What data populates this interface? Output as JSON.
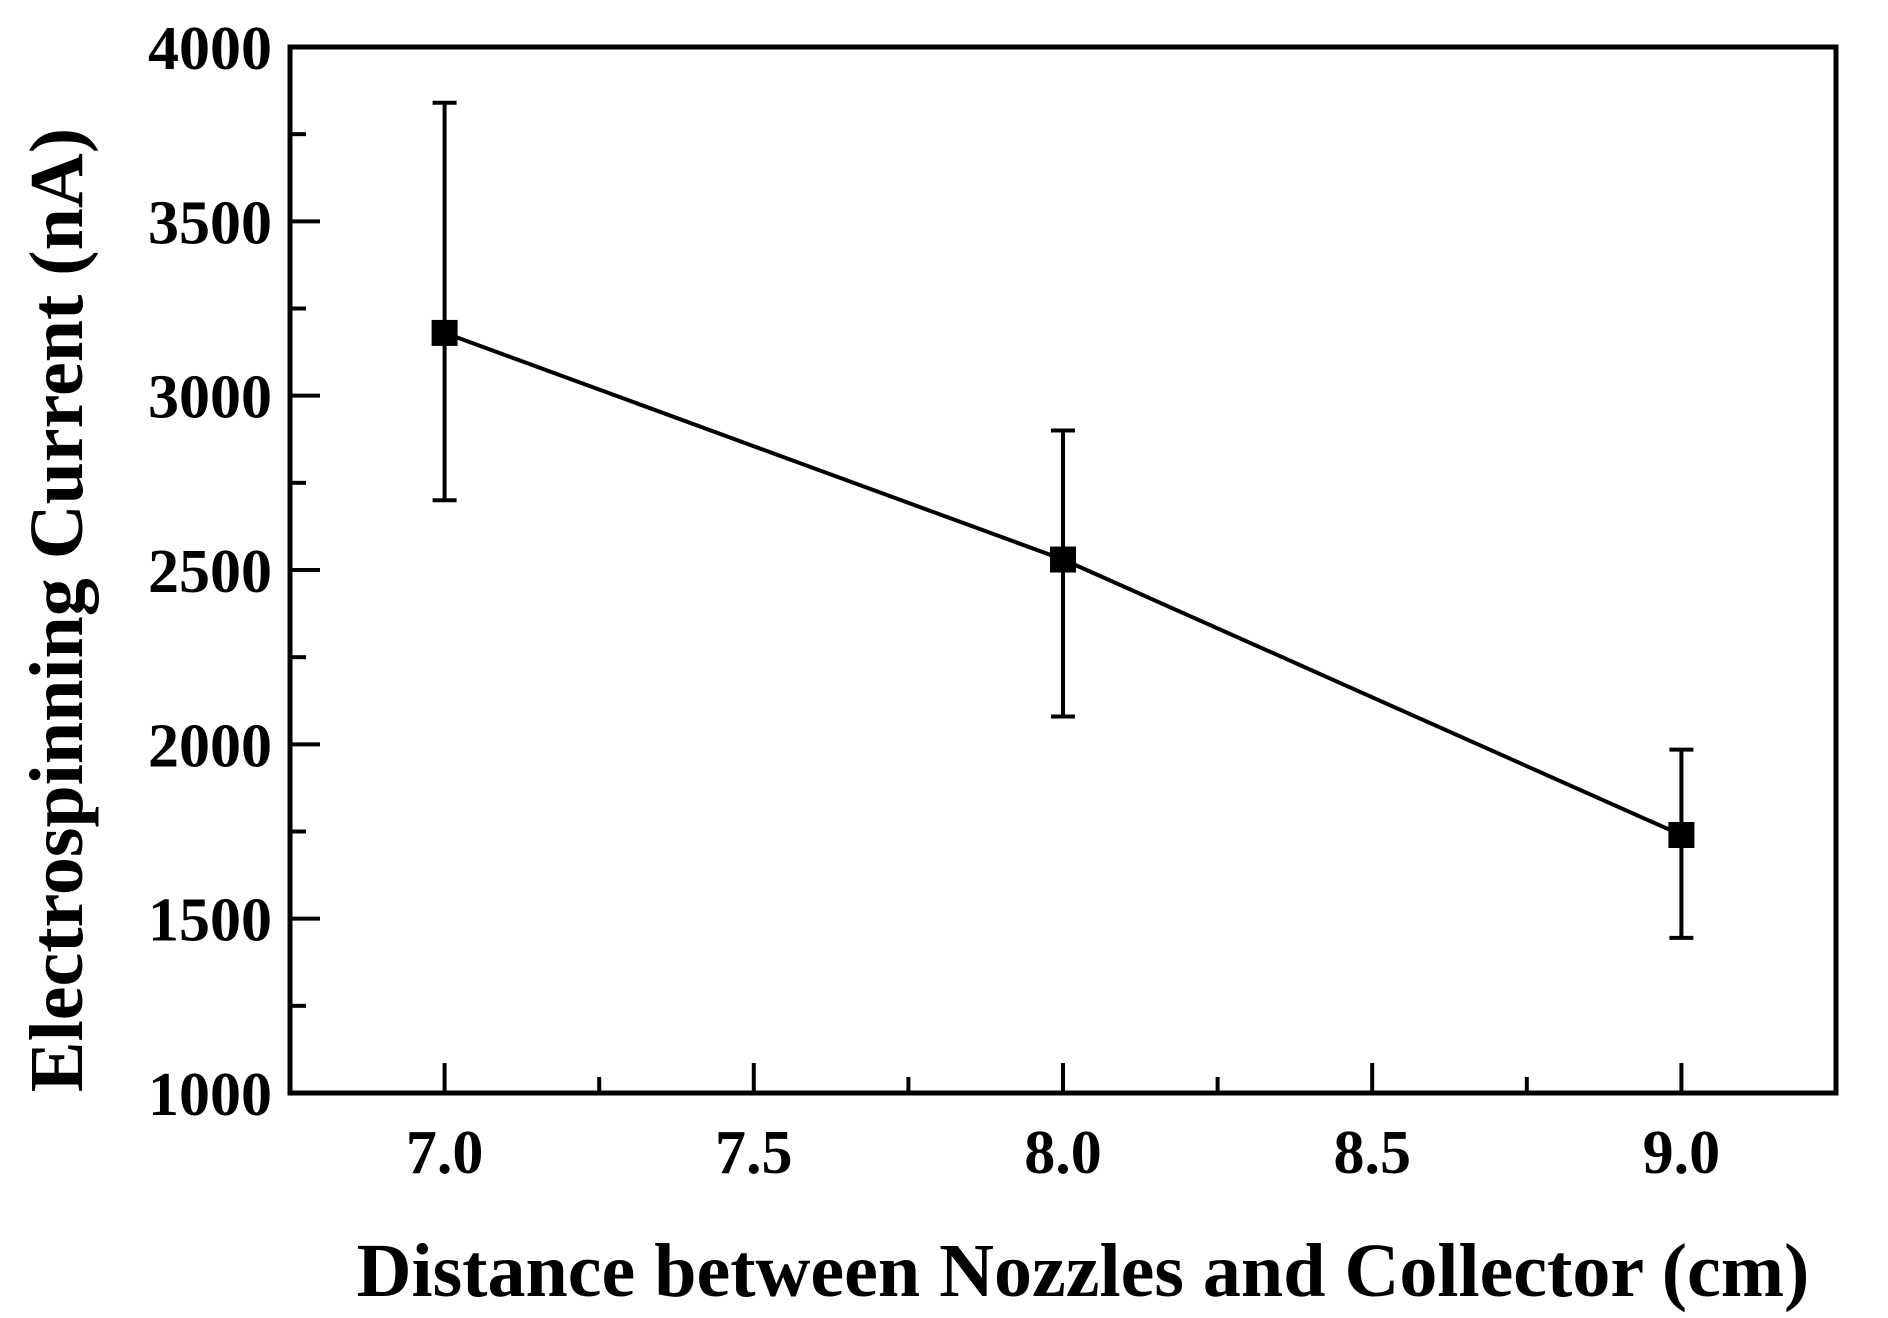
{
  "chart_data": {
    "type": "line",
    "title": "",
    "xlabel": "Distance between Nozzles and Collector (cm)",
    "ylabel": "Electrospinning Current (nA)",
    "xlim": [
      6.75,
      9.25
    ],
    "ylim": [
      1000,
      4000
    ],
    "x_major_ticks": [
      7.0,
      7.5,
      8.0,
      8.5,
      9.0
    ],
    "x_tick_labels": [
      "7.0",
      "7.5",
      "8.0",
      "8.5",
      "9.0"
    ],
    "y_major_ticks": [
      1000,
      1500,
      2000,
      2500,
      3000,
      3500,
      4000
    ],
    "y_tick_labels": [
      "1000",
      "1500",
      "2000",
      "2500",
      "3000",
      "3500",
      "4000"
    ],
    "grid": false,
    "legend": "none",
    "marker": "square",
    "series": [
      {
        "x": [
          7.0,
          8.0,
          9.0
        ],
        "y": [
          3180,
          2530,
          1740
        ],
        "error_low": [
          2700,
          2080,
          1445
        ],
        "error_high": [
          3840,
          2900,
          1985
        ]
      }
    ],
    "colors": {
      "line": "#000000",
      "marker": "#000000"
    }
  }
}
